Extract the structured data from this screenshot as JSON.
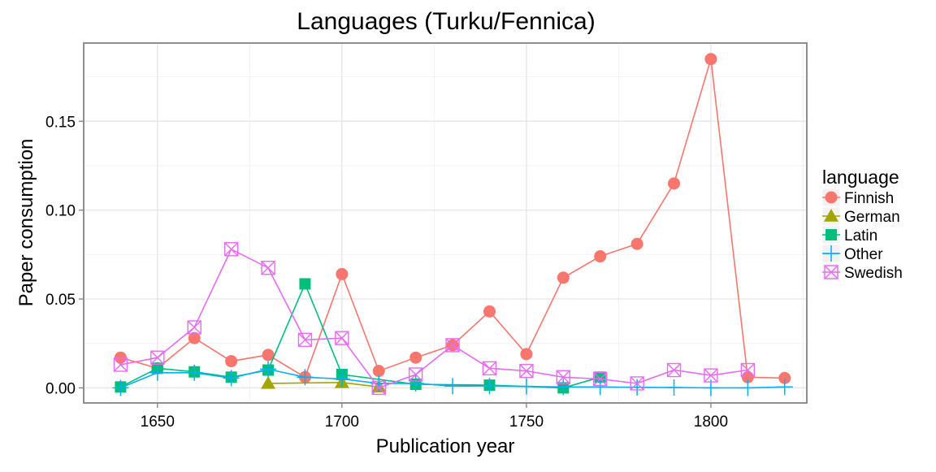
{
  "chart_data": {
    "type": "line",
    "title": "Languages (Turku/Fennica)",
    "xlabel": "Publication year",
    "ylabel": "Paper consumption",
    "xlim": [
      1630,
      1826
    ],
    "ylim": [
      -0.0085,
      0.194
    ],
    "xticks": [
      1650,
      1700,
      1750,
      1800
    ],
    "xtick_labels": [
      "1650",
      "1700",
      "1750",
      "1800"
    ],
    "yticks": [
      0.0,
      0.05,
      0.1,
      0.15
    ],
    "ytick_labels": [
      "0.00",
      "0.05",
      "0.10",
      "0.15"
    ],
    "grid": true,
    "legend": {
      "title": "language",
      "position": "right"
    },
    "series": [
      {
        "name": "Finnish",
        "color": "#F8766D",
        "marker": "circle",
        "points": [
          [
            1640,
            0.017
          ],
          [
            1650,
            0.011
          ],
          [
            1660,
            0.028
          ],
          [
            1670,
            0.015
          ],
          [
            1680,
            0.0185
          ],
          [
            1690,
            0.006
          ],
          [
            1700,
            0.064
          ],
          [
            1710,
            0.0095
          ],
          [
            1720,
            0.017
          ],
          [
            1730,
            0.024
          ],
          [
            1740,
            0.043
          ],
          [
            1750,
            0.019
          ],
          [
            1760,
            0.062
          ],
          [
            1770,
            0.074
          ],
          [
            1780,
            0.081
          ],
          [
            1790,
            0.115
          ],
          [
            1800,
            0.185
          ],
          [
            1810,
            0.006
          ],
          [
            1820,
            0.0055
          ]
        ]
      },
      {
        "name": "German",
        "color": "#A3A500",
        "marker": "triangle",
        "points": [
          [
            1680,
            0.0025
          ],
          [
            1700,
            0.003
          ],
          [
            1710,
            0.0005
          ]
        ]
      },
      {
        "name": "Latin",
        "color": "#00BF7D",
        "marker": "square",
        "points": [
          [
            1640,
            0.0005
          ],
          [
            1650,
            0.011
          ],
          [
            1660,
            0.009
          ],
          [
            1670,
            0.006
          ],
          [
            1680,
            0.01
          ],
          [
            1690,
            0.0585
          ],
          [
            1700,
            0.0075
          ],
          [
            1720,
            0.002
          ],
          [
            1740,
            0.0015
          ],
          [
            1760,
            0.0
          ],
          [
            1770,
            0.006
          ]
        ]
      },
      {
        "name": "Other",
        "color": "#00B0F6",
        "marker": "plus",
        "points": [
          [
            1640,
            0.0
          ],
          [
            1650,
            0.0085
          ],
          [
            1660,
            0.0085
          ],
          [
            1670,
            0.0055
          ],
          [
            1680,
            0.0105
          ],
          [
            1690,
            0.006
          ],
          [
            1700,
            0.005
          ],
          [
            1710,
            0.0025
          ],
          [
            1720,
            0.0025
          ],
          [
            1730,
            0.001
          ],
          [
            1740,
            0.001
          ],
          [
            1750,
            0.0008
          ],
          [
            1760,
            0.0005
          ],
          [
            1770,
            0.0005
          ],
          [
            1780,
            0.0003
          ],
          [
            1790,
            0.0002
          ],
          [
            1800,
            0.0
          ],
          [
            1810,
            0.0
          ],
          [
            1820,
            0.0005
          ]
        ]
      },
      {
        "name": "Swedish",
        "color": "#E76BF3",
        "marker": "boxx",
        "points": [
          [
            1640,
            0.013
          ],
          [
            1650,
            0.017
          ],
          [
            1660,
            0.034
          ],
          [
            1670,
            0.078
          ],
          [
            1680,
            0.0675
          ],
          [
            1690,
            0.027
          ],
          [
            1700,
            0.028
          ],
          [
            1710,
            0.0
          ],
          [
            1720,
            0.0075
          ],
          [
            1730,
            0.024
          ],
          [
            1740,
            0.011
          ],
          [
            1750,
            0.0095
          ],
          [
            1760,
            0.006
          ],
          [
            1770,
            0.005
          ],
          [
            1780,
            0.0025
          ],
          [
            1790,
            0.01
          ],
          [
            1800,
            0.007
          ],
          [
            1810,
            0.01
          ]
        ]
      }
    ]
  }
}
